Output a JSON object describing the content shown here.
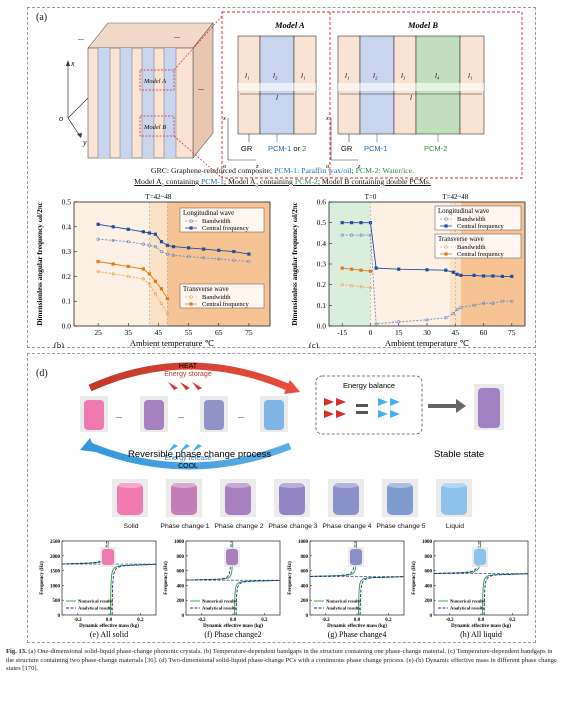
{
  "panel_a": {
    "label": "(a)",
    "model_a_title": "Model A",
    "model_b_title": "Model B",
    "model_a_inset": "Model A",
    "model_b_inset": "Model B",
    "axis_x": "x",
    "axis_y": "y",
    "axis_o": "o",
    "axis_z": "z",
    "ellipsis": "...",
    "layers_a": [
      "l₁",
      "l₂",
      "l₁"
    ],
    "layers_b": [
      "l₁",
      "l₂",
      "l₃",
      "l₄",
      "l₁"
    ],
    "period_label": "l",
    "gr_label": "GR",
    "pcm_a_label_1": "PCM-1",
    "pcm_a_or": " or ",
    "pcm_a_label_2": "2",
    "pcm_b_label_1": "PCM-1",
    "pcm_b_label_2": "PCM-2",
    "legend_line1_a": "GRC: Graphene-reinforced composite; ",
    "legend_line1_b": "PCM-1: Paraffin wax/oil",
    "legend_line1_c": "; ",
    "legend_line1_d": "PCM-2: Water/ice.",
    "legend_line2_a": "Model A",
    "legend_line2_a_sub": "1",
    "legend_line2_b": " containing ",
    "legend_line2_c": "PCM-1",
    "legend_line2_d": "; Model A",
    "legend_line2_d_sub": "2",
    "legend_line2_e": " containing ",
    "legend_line2_f": "PCM-2",
    "legend_line2_g": "; Model B containing double PCMs."
  },
  "panel_d": {
    "label": "(d)",
    "heat": "HEAT",
    "energy_storage": "Energy storage",
    "energy_release": "Energy release",
    "cool": "COOL",
    "energy_balance": "Energy balance",
    "reversible": "Reversible phase change process",
    "stable": "Stable state",
    "states": [
      "Solid",
      "Phase change 1",
      "Phase change 2",
      "Phase change 3",
      "Phase change 4",
      "Phase change 5",
      "Liquid"
    ],
    "dots": "...",
    "colors": {
      "solid": "#f07ab0",
      "mid": "#9f8ac2",
      "liquid": "#6aaee3"
    }
  },
  "chart_data": [
    {
      "id": "b",
      "type": "line",
      "panel_label": "(b)",
      "xlabel": "Ambient temperature ℃",
      "ylabel": "Dimensionless angular frequency ωl/2πc",
      "annotation": "T=42~48",
      "xlim": [
        17,
        82
      ],
      "ylim": [
        0.0,
        0.5
      ],
      "xticks": [
        "25",
        "35",
        "45",
        "55",
        "65",
        "75"
      ],
      "yticks": [
        "0.0",
        "0.1",
        "0.2",
        "0.3",
        "0.4",
        "0.5"
      ],
      "legend_longitudinal": {
        "title": "Longitudinal wave",
        "items": [
          "Bandwidth",
          "Central frequency"
        ]
      },
      "legend_transverse": {
        "title": "Transverse wave",
        "items": [
          "Bandwidth",
          "Central frequency"
        ]
      },
      "series": [
        {
          "name": "Longitudinal Central frequency",
          "color": "#1f4e9a",
          "x": [
            25,
            30,
            35,
            40,
            42,
            44,
            46,
            48,
            50,
            55,
            60,
            65,
            70,
            75
          ],
          "y": [
            0.41,
            0.4,
            0.39,
            0.38,
            0.375,
            0.37,
            0.34,
            0.325,
            0.32,
            0.315,
            0.31,
            0.305,
            0.3,
            0.29
          ]
        },
        {
          "name": "Longitudinal Bandwidth",
          "color": "#6c8fc4",
          "x": [
            25,
            30,
            35,
            40,
            42,
            44,
            46,
            48,
            50,
            55,
            60,
            65,
            70,
            75
          ],
          "y": [
            0.35,
            0.345,
            0.34,
            0.33,
            0.325,
            0.32,
            0.3,
            0.29,
            0.285,
            0.28,
            0.275,
            0.27,
            0.265,
            0.26
          ]
        },
        {
          "name": "Transverse Central frequency",
          "color": "#e07b1a",
          "x": [
            25,
            30,
            35,
            40,
            42,
            44,
            46,
            48
          ],
          "y": [
            0.26,
            0.25,
            0.24,
            0.23,
            0.21,
            0.18,
            0.15,
            0.11
          ]
        },
        {
          "name": "Transverse Bandwidth",
          "color": "#f0a55a",
          "x": [
            25,
            30,
            35,
            40,
            42,
            44,
            46,
            48
          ],
          "y": [
            0.22,
            0.21,
            0.2,
            0.19,
            0.17,
            0.13,
            0.09,
            0.05
          ]
        }
      ]
    },
    {
      "id": "c",
      "type": "line",
      "panel_label": "(c)",
      "xlabel": "Ambient temperature ℃",
      "ylabel": "Dimensionless angular frequency ωl/2πc",
      "annotation_1": "T=0",
      "annotation_2": "T=42~48",
      "xlim": [
        -22,
        82
      ],
      "ylim": [
        0.0,
        0.6
      ],
      "xticks": [
        "-15",
        "0",
        "15",
        "30",
        "45",
        "60",
        "75"
      ],
      "yticks": [
        "0.0",
        "0.1",
        "0.2",
        "0.3",
        "0.4",
        "0.5",
        "0.6"
      ],
      "legend_longitudinal": {
        "title": "Longitudinal wave",
        "items": [
          "Bandwidth",
          "Central frequency"
        ]
      },
      "legend_transverse": {
        "title": "Transverse wave",
        "items": [
          "Bandwidth",
          "Central frequency"
        ]
      },
      "series": [
        {
          "name": "Longitudinal Central frequency",
          "color": "#1f4e9a",
          "x": [
            -15,
            -10,
            -5,
            0,
            3,
            15,
            30,
            40,
            44,
            46,
            48,
            55,
            60,
            65,
            70,
            75
          ],
          "y": [
            0.5,
            0.5,
            0.5,
            0.5,
            0.28,
            0.275,
            0.272,
            0.27,
            0.26,
            0.25,
            0.245,
            0.245,
            0.242,
            0.242,
            0.24,
            0.24
          ]
        },
        {
          "name": "Longitudinal Bandwidth",
          "color": "#6c8fc4",
          "x": [
            -15,
            -10,
            -5,
            0,
            3,
            15,
            30,
            40,
            44,
            46,
            48,
            55,
            60,
            65,
            70,
            75
          ],
          "y": [
            0.44,
            0.44,
            0.44,
            0.44,
            0.01,
            0.02,
            0.03,
            0.04,
            0.06,
            0.08,
            0.09,
            0.1,
            0.11,
            0.11,
            0.12,
            0.12
          ]
        },
        {
          "name": "Transverse Central frequency",
          "color": "#e07b1a",
          "x": [
            -15,
            -10,
            -5,
            0
          ],
          "y": [
            0.28,
            0.275,
            0.27,
            0.265
          ]
        },
        {
          "name": "Transverse Bandwidth",
          "color": "#f0a55a",
          "x": [
            -15,
            -10,
            -5,
            0
          ],
          "y": [
            0.2,
            0.195,
            0.19,
            0.185
          ]
        }
      ]
    },
    {
      "id": "e",
      "type": "line",
      "panel_label": "(e) All solid",
      "xlabel": "Dynamic effective mass (kg)",
      "ylabel": "Frequency (Hz)",
      "xlim": [
        -0.3,
        0.3
      ],
      "ylim": [
        0,
        2500
      ],
      "xticks": [
        "-0.2",
        "0.0",
        "0.2"
      ],
      "yticks": [
        "0",
        "500",
        "1000",
        "1500",
        "2000",
        "2500"
      ],
      "resonance": 1720,
      "legend": [
        "Numerical results",
        "Analytical results"
      ]
    },
    {
      "id": "f",
      "type": "line",
      "panel_label": "(f)  Phase change2",
      "xlabel": "Dynamic effective mass (kg)",
      "ylabel": "Frequency (Hz)",
      "xlim": [
        -0.3,
        0.3
      ],
      "ylim": [
        0,
        1000
      ],
      "xticks": [
        "-0.2",
        "0.0",
        "0.2"
      ],
      "yticks": [
        "0",
        "200",
        "400",
        "600",
        "800",
        "1000"
      ],
      "resonance": 470,
      "legend": [
        "Numerical results",
        "Analytical results"
      ]
    },
    {
      "id": "g",
      "type": "line",
      "panel_label": "(g)  Phase change4",
      "xlabel": "Dynamic effective mass (kg)",
      "ylabel": "Frequency (Hz)",
      "xlim": [
        -0.3,
        0.3
      ],
      "ylim": [
        0,
        1000
      ],
      "xticks": [
        "-0.2",
        "0.0",
        "0.2"
      ],
      "yticks": [
        "0",
        "200",
        "400",
        "600",
        "800",
        "1000"
      ],
      "resonance": 520,
      "legend": [
        "Numerical results",
        "Analytical results"
      ]
    },
    {
      "id": "h",
      "type": "line",
      "panel_label": "(h)  All liquid",
      "xlabel": "Dynamic effective mass (kg)",
      "ylabel": "Frequency (Hz)",
      "xlim": [
        -0.3,
        0.3
      ],
      "ylim": [
        0,
        1000
      ],
      "xticks": [
        "-0.2",
        "0.0",
        "0.2"
      ],
      "yticks": [
        "0",
        "200",
        "400",
        "600",
        "800",
        "1000"
      ],
      "resonance": 560,
      "legend": [
        "Numerical results",
        "Analytical results"
      ]
    }
  ],
  "caption": {
    "fig": "Fig. 13.",
    "text": " (a) One-dimensional solid-liquid phase-change phononic crystals. (b) Temperature-dependent bandgaps in the structure containing one phase-change material. (c) Temperature-dependent bandgaps in the structure containing two phase-change materials [36]. (d) Two-dimensional solid-liquid phase-change PCs with a continuous phase change process. (e)-(h) Dynamic effective mass in different phase change states [170]."
  }
}
